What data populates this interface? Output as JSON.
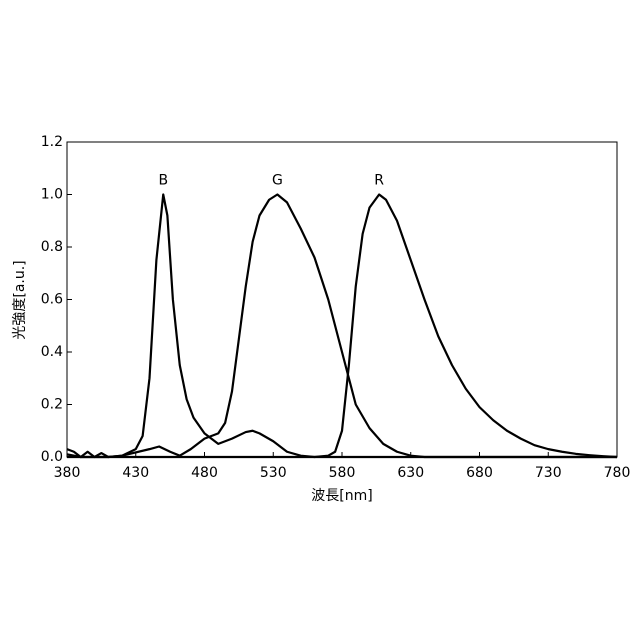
{
  "chart_data": {
    "type": "line",
    "x_label": "波長[nm]",
    "y_label": "光強度[a.u.]",
    "xlim": [
      380,
      780
    ],
    "xticks": [
      380,
      430,
      480,
      530,
      580,
      630,
      680,
      730,
      780
    ],
    "ylim": [
      0,
      1.2
    ],
    "yticks": [
      {
        "value": 0,
        "label": "0.0"
      },
      0.2,
      0.4,
      0.6,
      0.8,
      {
        "value": 1,
        "label": "1.0"
      },
      1.2
    ],
    "series": [
      {
        "name": "B",
        "color": "#000000",
        "x": [
          380,
          390,
          400,
          410,
          420,
          430,
          435,
          440,
          445,
          450,
          453,
          457,
          462,
          467,
          472,
          480,
          490,
          500,
          510,
          515,
          520,
          530,
          540,
          550,
          560,
          780
        ],
        "values": [
          0.01,
          0,
          0,
          0,
          0.005,
          0.03,
          0.08,
          0.3,
          0.75,
          1.0,
          0.92,
          0.6,
          0.35,
          0.22,
          0.15,
          0.09,
          0.05,
          0.07,
          0.095,
          0.1,
          0.09,
          0.06,
          0.02,
          0.005,
          0,
          0
        ]
      },
      {
        "name": "G",
        "color": "#000000",
        "x": [
          380,
          385,
          390,
          395,
          400,
          405,
          410,
          420,
          440,
          447,
          455,
          462,
          470,
          480,
          490,
          495,
          500,
          505,
          510,
          515,
          520,
          527,
          533,
          540,
          550,
          560,
          570,
          580,
          585,
          590,
          600,
          610,
          620,
          630,
          640,
          780
        ],
        "values": [
          0.03,
          0.02,
          0,
          0.02,
          0,
          0.015,
          0,
          0.005,
          0.03,
          0.04,
          0.02,
          0.005,
          0.03,
          0.07,
          0.09,
          0.13,
          0.25,
          0.45,
          0.65,
          0.82,
          0.92,
          0.98,
          1.0,
          0.97,
          0.87,
          0.76,
          0.6,
          0.4,
          0.3,
          0.2,
          0.11,
          0.05,
          0.02,
          0.005,
          0,
          0
        ]
      },
      {
        "name": "R",
        "color": "#000000",
        "x": [
          380,
          560,
          570,
          575,
          580,
          585,
          590,
          595,
          600,
          607,
          612,
          620,
          630,
          640,
          650,
          660,
          670,
          680,
          690,
          700,
          710,
          720,
          730,
          740,
          750,
          760,
          770,
          780
        ],
        "values": [
          0,
          0,
          0.005,
          0.02,
          0.1,
          0.35,
          0.65,
          0.85,
          0.95,
          1.0,
          0.98,
          0.9,
          0.75,
          0.6,
          0.46,
          0.35,
          0.26,
          0.19,
          0.14,
          0.1,
          0.07,
          0.045,
          0.03,
          0.02,
          0.012,
          0.007,
          0.003,
          0
        ]
      }
    ]
  }
}
